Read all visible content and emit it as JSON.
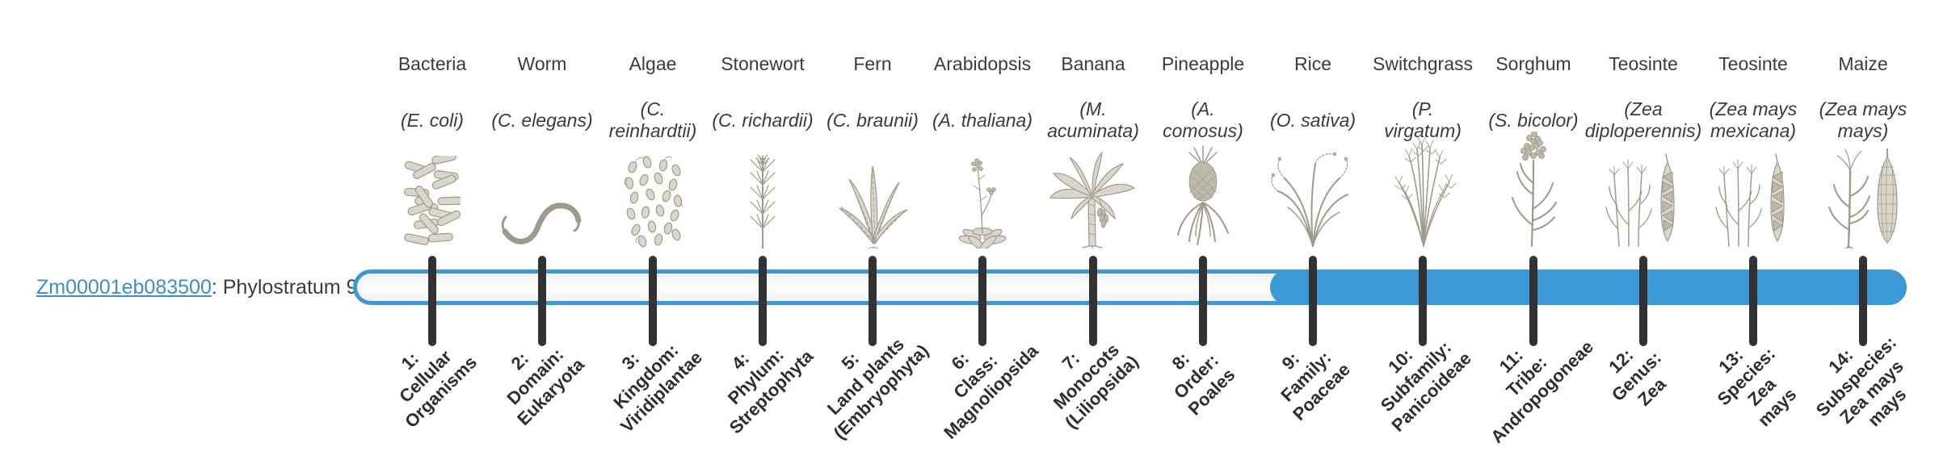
{
  "gene": {
    "id": "Zm00001eb083500",
    "suffix": ": Phylostratum 9",
    "phylostratum": 9
  },
  "bar": {
    "strata_count": 14,
    "highlight_start_stratum": 9
  },
  "colors": {
    "bar_blue": "#3b99d8",
    "track_fill": "#fafafa",
    "tick": "#323232",
    "link_blue": "#3e8ccc",
    "text": "#3b3b3b"
  },
  "taxa": [
    {
      "name": "Bacteria",
      "sci": "(E. coli)",
      "icon": "bacteria",
      "stratum_label": "1:\nCellular\nOrganisms"
    },
    {
      "name": "Worm",
      "sci": "(C. elegans)",
      "icon": "worm",
      "stratum_label": "2:\nDomain:\nEukaryota"
    },
    {
      "name": "Algae",
      "sci": "(C.\nreinhardtii)",
      "icon": "algae",
      "stratum_label": "3:\nKingdom:\nViridiplantae"
    },
    {
      "name": "Stonewort",
      "sci": "(C. richardii)",
      "icon": "stonewort",
      "stratum_label": "4:\nPhylum:\nStreptophyta"
    },
    {
      "name": "Fern",
      "sci": "(C. braunii)",
      "icon": "fern",
      "stratum_label": "5:\nLand plants\n(Embryophyta)"
    },
    {
      "name": "Arabidopsis",
      "sci": "(A. thaliana)",
      "icon": "arabidopsis",
      "stratum_label": "6:\nClass:\nMagnoliopsida"
    },
    {
      "name": "Banana",
      "sci": "(M.\nacuminata)",
      "icon": "banana",
      "stratum_label": "7:\nMonocots\n(Liliopsida)"
    },
    {
      "name": "Pineapple",
      "sci": "(A.\ncomosus)",
      "icon": "pineapple",
      "stratum_label": "8:\nOrder:\nPoales"
    },
    {
      "name": "Rice",
      "sci": "(O. sativa)",
      "icon": "rice",
      "stratum_label": "9:\nFamily:\nPoaceae"
    },
    {
      "name": "Switchgrass",
      "sci": "(P.\nvirgatum)",
      "icon": "switchgrass",
      "stratum_label": "10:\nSubfamily:\nPanicoideae"
    },
    {
      "name": "Sorghum",
      "sci": "(S. bicolor)",
      "icon": "sorghum",
      "stratum_label": "11:\nTribe:\nAndropogoneae"
    },
    {
      "name": "Teosinte",
      "sci": "(Zea\ndiploperennis)",
      "icon": "teosinte",
      "stratum_label": "12:\nGenus:\nZea"
    },
    {
      "name": "Teosinte",
      "sci": "(Zea mays\nmexicana)",
      "icon": "teosinte",
      "stratum_label": "13:\nSpecies:\nZea\nmays"
    },
    {
      "name": "Maize",
      "sci": "(Zea mays\nmays)",
      "icon": "maize",
      "stratum_label": "14:\nSubspecies:\nZea mays\nmays"
    }
  ]
}
